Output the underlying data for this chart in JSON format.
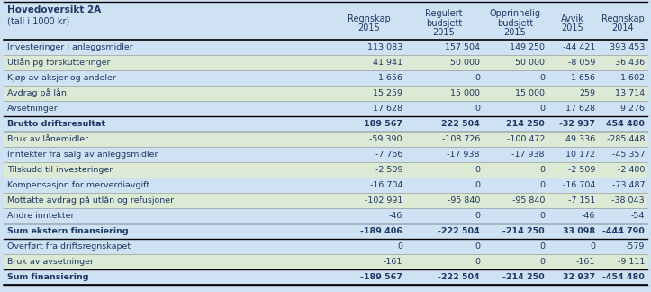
{
  "title_line1": "Hovedoversikt 2A",
  "title_line2": "(tall i 1000 kr)",
  "col_headers_line1": [
    "Regnskap",
    "Regulert",
    "Opprinnelig",
    "Avvik",
    "Regnskap"
  ],
  "col_headers_line2": [
    "2015",
    "budsjett",
    "budsjett",
    "2015",
    "2014"
  ],
  "col_headers_line3": [
    "",
    "2015",
    "2015",
    "",
    ""
  ],
  "rows": [
    {
      "label": "Investeringer i anleggsmidler",
      "values": [
        "113 083",
        "157 504",
        "149 250",
        "-44 421",
        "393 453"
      ],
      "bold": false,
      "shade": false
    },
    {
      "label": "Utlån pg forskutteringer",
      "values": [
        "41 941",
        "50 000",
        "50 000",
        "-8 059",
        "36 436"
      ],
      "bold": false,
      "shade": true
    },
    {
      "label": "Kjøp av aksjer og andeler",
      "values": [
        "1 656",
        "0",
        "0",
        "1 656",
        "1 602"
      ],
      "bold": false,
      "shade": false
    },
    {
      "label": "Avdrag på lån",
      "values": [
        "15 259",
        "15 000",
        "15 000",
        "259",
        "13 714"
      ],
      "bold": false,
      "shade": true
    },
    {
      "label": "Avsetninger",
      "values": [
        "17 628",
        "0",
        "0",
        "17 628",
        "9 276"
      ],
      "bold": false,
      "shade": false
    },
    {
      "label": "Brutto driftsresultat",
      "values": [
        "189 567",
        "222 504",
        "214 250",
        "-32 937",
        "454 480"
      ],
      "bold": true,
      "shade": false
    },
    {
      "label": "Bruk av lånemidler",
      "values": [
        "-59 390",
        "-108 726",
        "-100 472",
        "49 336",
        "-285 448"
      ],
      "bold": false,
      "shade": true
    },
    {
      "label": "Inntekter fra salg av anleggsmidler",
      "values": [
        "-7 766",
        "-17 938",
        "-17 938",
        "10 172",
        "-45 357"
      ],
      "bold": false,
      "shade": false
    },
    {
      "label": "Tilskudd til investeringer",
      "values": [
        "-2 509",
        "0",
        "0",
        "-2 509",
        "-2 400"
      ],
      "bold": false,
      "shade": true
    },
    {
      "label": "Kompensasjon for merverdiavgift",
      "values": [
        "-16 704",
        "0",
        "0",
        "-16 704",
        "-73 487"
      ],
      "bold": false,
      "shade": false
    },
    {
      "label": "Mottatte avdrag på utlån og refusjoner",
      "values": [
        "-102 991",
        "-95 840",
        "-95 840",
        "-7 151",
        "-38 043"
      ],
      "bold": false,
      "shade": true
    },
    {
      "label": "Andre inntekter",
      "values": [
        "-46",
        "0",
        "0",
        "-46",
        "-54"
      ],
      "bold": false,
      "shade": false
    },
    {
      "label": "Sum ekstern finansiering",
      "values": [
        "-189 406",
        "-222 504",
        "-214 250",
        "33 098",
        "-444 790"
      ],
      "bold": true,
      "shade": false
    },
    {
      "label": "Overført fra driftsregnskapet",
      "values": [
        "0",
        "0",
        "0",
        "0",
        "-579"
      ],
      "bold": false,
      "shade": false
    },
    {
      "label": "Bruk av avsetninger",
      "values": [
        "-161",
        "0",
        "0",
        "-161",
        "-9 111"
      ],
      "bold": false,
      "shade": true
    },
    {
      "label": "Sum finansiering",
      "values": [
        "-189 567",
        "-222 504",
        "-214 250",
        "32 937",
        "-454 480"
      ],
      "bold": true,
      "shade": false
    }
  ],
  "bg_color": "#cfe2f3",
  "shade_color": "#dce9d5",
  "text_color": "#1f3864",
  "bold_text_color": "#1f3864",
  "border_color": "#4472c4",
  "header_sep_color": "#000000",
  "fig_bg": "#cfe2f3"
}
